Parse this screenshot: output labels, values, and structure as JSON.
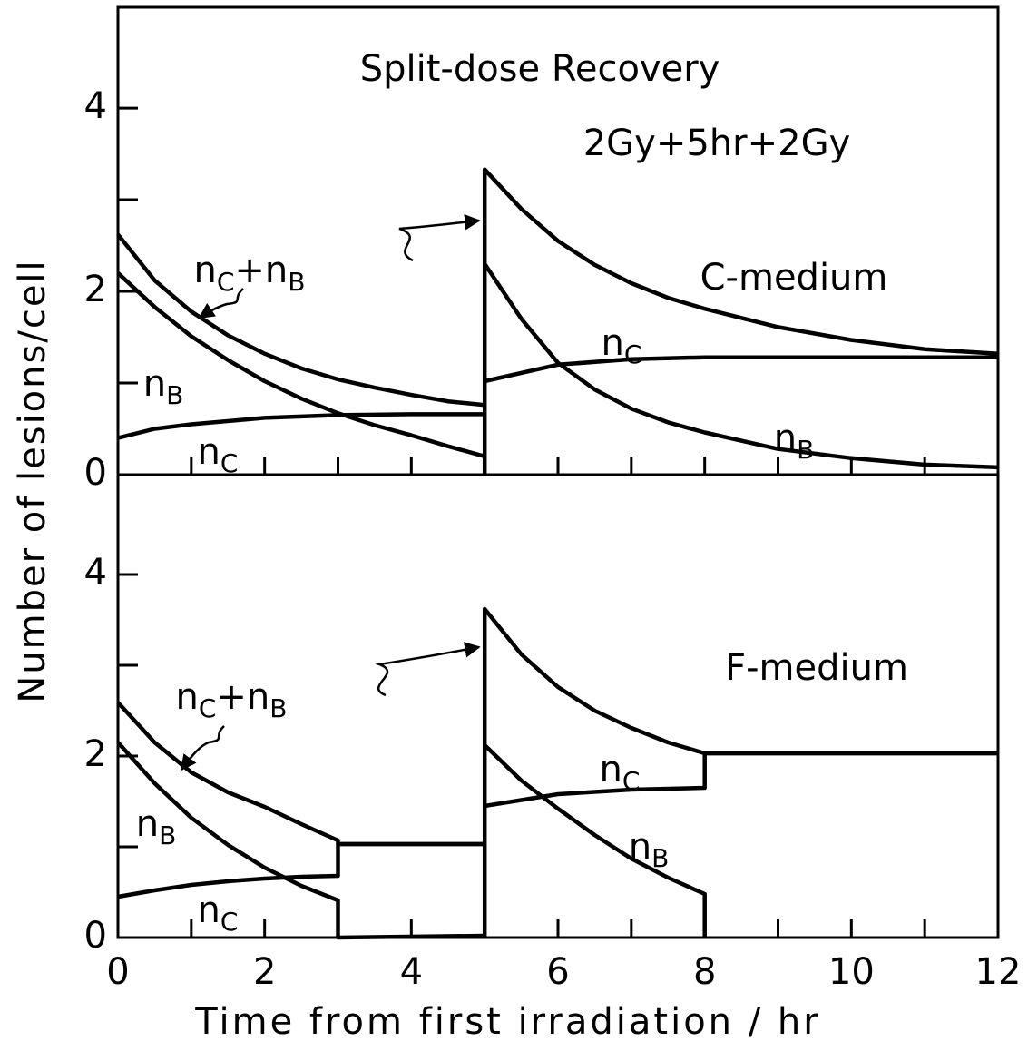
{
  "chart_data": [
    {
      "type": "line",
      "title": "Split-dose Recovery",
      "annotations": [
        "2Gy+5hr+2Gy",
        "C-medium"
      ],
      "xlim": [
        0,
        12
      ],
      "ylim": [
        0,
        5.1
      ],
      "yticks": [
        0,
        2,
        4
      ],
      "ytick_marks": [
        1,
        3
      ],
      "xtick_marks": [
        1,
        2,
        3,
        4,
        5,
        6,
        7,
        8,
        9,
        10,
        11
      ],
      "series": [
        {
          "name": "nC+nB",
          "color": "#000000",
          "x": [
            0,
            0.5,
            1,
            1.5,
            2,
            2.5,
            3,
            3.5,
            4,
            4.5,
            5,
            null,
            5,
            5,
            5.5,
            6,
            6.5,
            7,
            7.5,
            8,
            9,
            10,
            11,
            12
          ],
          "values": [
            2.62,
            2.12,
            1.78,
            1.52,
            1.32,
            1.16,
            1.04,
            0.95,
            0.87,
            0.8,
            0.76,
            null,
            0,
            3.33,
            2.9,
            2.55,
            2.29,
            2.09,
            1.93,
            1.81,
            1.61,
            1.47,
            1.37,
            1.32
          ]
        },
        {
          "name": "nB",
          "color": "#000000",
          "x": [
            0,
            0.5,
            1,
            1.5,
            2,
            2.5,
            3,
            3.5,
            4,
            4.5,
            5,
            null,
            5,
            5.5,
            6,
            6.5,
            7,
            7.5,
            8,
            9,
            10,
            11,
            12
          ],
          "values": [
            2.2,
            1.83,
            1.51,
            1.25,
            1.02,
            0.83,
            0.67,
            0.54,
            0.43,
            0.31,
            0.2,
            null,
            2.3,
            1.7,
            1.22,
            0.93,
            0.72,
            0.57,
            0.46,
            0.28,
            0.18,
            0.11,
            0.08
          ]
        },
        {
          "name": "nC",
          "color": "#000000",
          "x": [
            0,
            0.5,
            1,
            2,
            3,
            4,
            5,
            null,
            5,
            6,
            7,
            8,
            10,
            12
          ],
          "values": [
            0.4,
            0.5,
            0.55,
            0.62,
            0.65,
            0.66,
            0.66,
            null,
            1.02,
            1.2,
            1.26,
            1.28,
            1.28,
            1.28
          ]
        }
      ]
    },
    {
      "type": "line",
      "annotations": [
        "F-medium"
      ],
      "xlim": [
        0,
        12
      ],
      "ylim": [
        0,
        5.1
      ],
      "yticks": [
        0,
        2,
        4
      ],
      "ytick_marks": [
        1,
        3
      ],
      "xticks": [
        0,
        2,
        4,
        6,
        8,
        10,
        12
      ],
      "xtick_marks": [
        1,
        3,
        5,
        7,
        9,
        11
      ],
      "xlabel": "Time from first irradiation / hr",
      "ylabel": "Number of lesions/cell",
      "series": [
        {
          "name": "nC+nB",
          "color": "#000000",
          "x": [
            0,
            0.5,
            1,
            1.5,
            2,
            2.5,
            3,
            3,
            5,
            null,
            5,
            5,
            5.5,
            6,
            6.5,
            7,
            7.5,
            8,
            12
          ],
          "values": [
            2.59,
            2.15,
            1.82,
            1.6,
            1.44,
            1.25,
            1.07,
            1.03,
            1.03,
            null,
            0,
            3.62,
            3.12,
            2.76,
            2.5,
            2.31,
            2.15,
            2.03,
            2.03
          ]
        },
        {
          "name": "nB",
          "color": "#000000",
          "x": [
            0,
            0.5,
            1,
            1.5,
            2,
            2.5,
            3,
            3,
            5,
            null,
            5,
            5.5,
            6,
            6.5,
            7,
            7.5,
            8,
            8
          ],
          "values": [
            2.15,
            1.7,
            1.32,
            1.02,
            0.77,
            0.57,
            0.41,
            0,
            0.02,
            null,
            2.12,
            1.73,
            1.42,
            1.13,
            0.87,
            0.66,
            0.48,
            0
          ]
        },
        {
          "name": "nC",
          "color": "#000000",
          "x": [
            0,
            0.5,
            1,
            1.5,
            2,
            2.5,
            3,
            3,
            5,
            null,
            5,
            6,
            7,
            8,
            8,
            12
          ],
          "values": [
            0.45,
            0.52,
            0.58,
            0.62,
            0.65,
            0.67,
            0.68,
            1.03,
            1.03,
            null,
            1.45,
            1.58,
            1.63,
            1.65,
            2.03,
            2.03
          ]
        }
      ]
    }
  ]
}
